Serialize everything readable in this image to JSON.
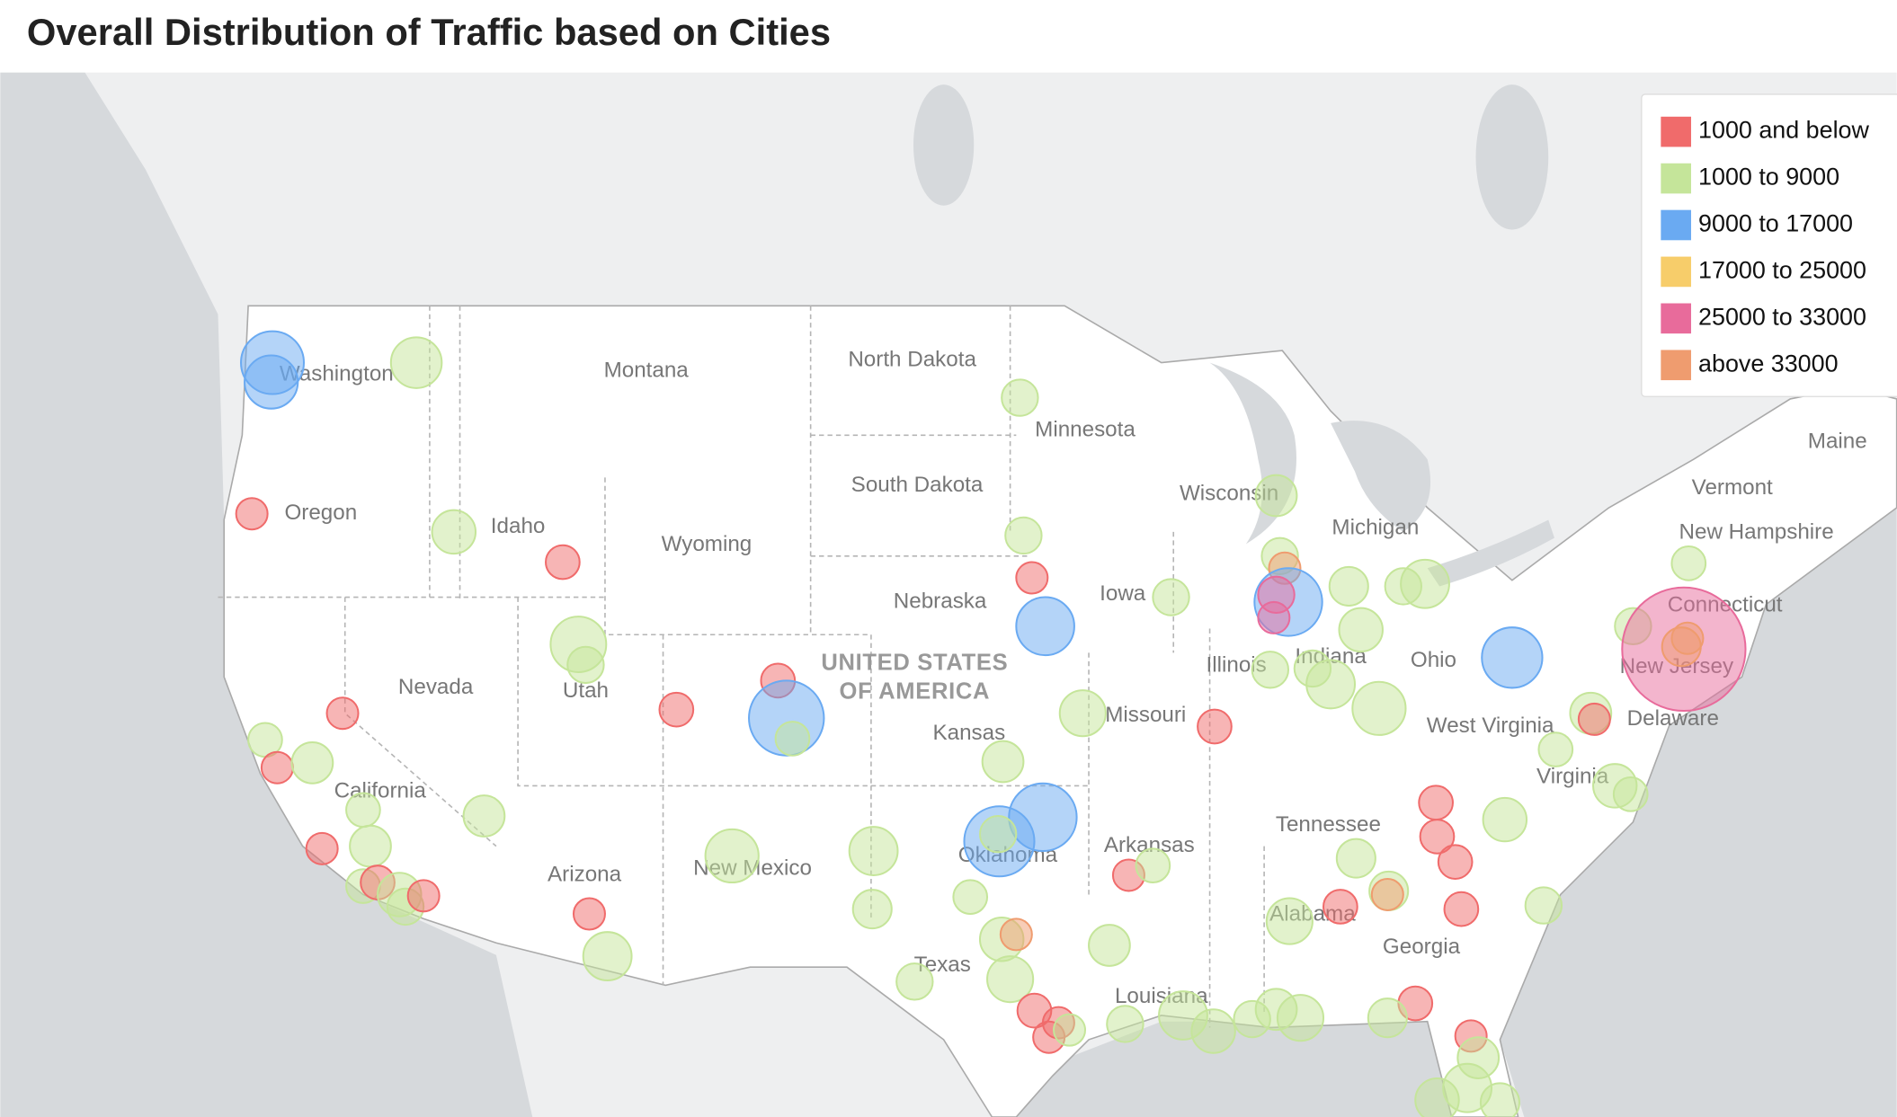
{
  "title": "Overall Distribution of Traffic based on Cities",
  "legend": [
    {
      "label": "1000 and below",
      "color": "#f06b6b"
    },
    {
      "label": "1000 to 9000",
      "color": "#c5e59a"
    },
    {
      "label": "9000 to 17000",
      "color": "#6aaaf2"
    },
    {
      "label": "17000 to 25000",
      "color": "#f7cd6a"
    },
    {
      "label": "25000 to 33000",
      "color": "#e86b9b"
    },
    {
      "label": "above 33000",
      "color": "#ef9c6f"
    }
  ],
  "map_labels": [
    "Washington",
    "Montana",
    "North Dakota",
    "Minnesota",
    "Oregon",
    "Idaho",
    "Wyoming",
    "South Dakota",
    "Wisconsin",
    "Michigan",
    "Nebraska",
    "Iowa",
    "Nevada",
    "Utah",
    "Illinois",
    "Indiana",
    "Ohio",
    "California",
    "Kansas",
    "Missouri",
    "West Virginia",
    "Virginia",
    "Arizona",
    "New Mexico",
    "Oklahoma",
    "Arkansas",
    "Tennessee",
    "Alabama",
    "Georgia",
    "Texas",
    "Louisiana",
    "Maine",
    "Vermont",
    "New Hampshire",
    "Connecticut",
    "New Jersey",
    "Delaware"
  ],
  "country_label": [
    "UNITED STATES",
    "OF AMERICA"
  ]
}
